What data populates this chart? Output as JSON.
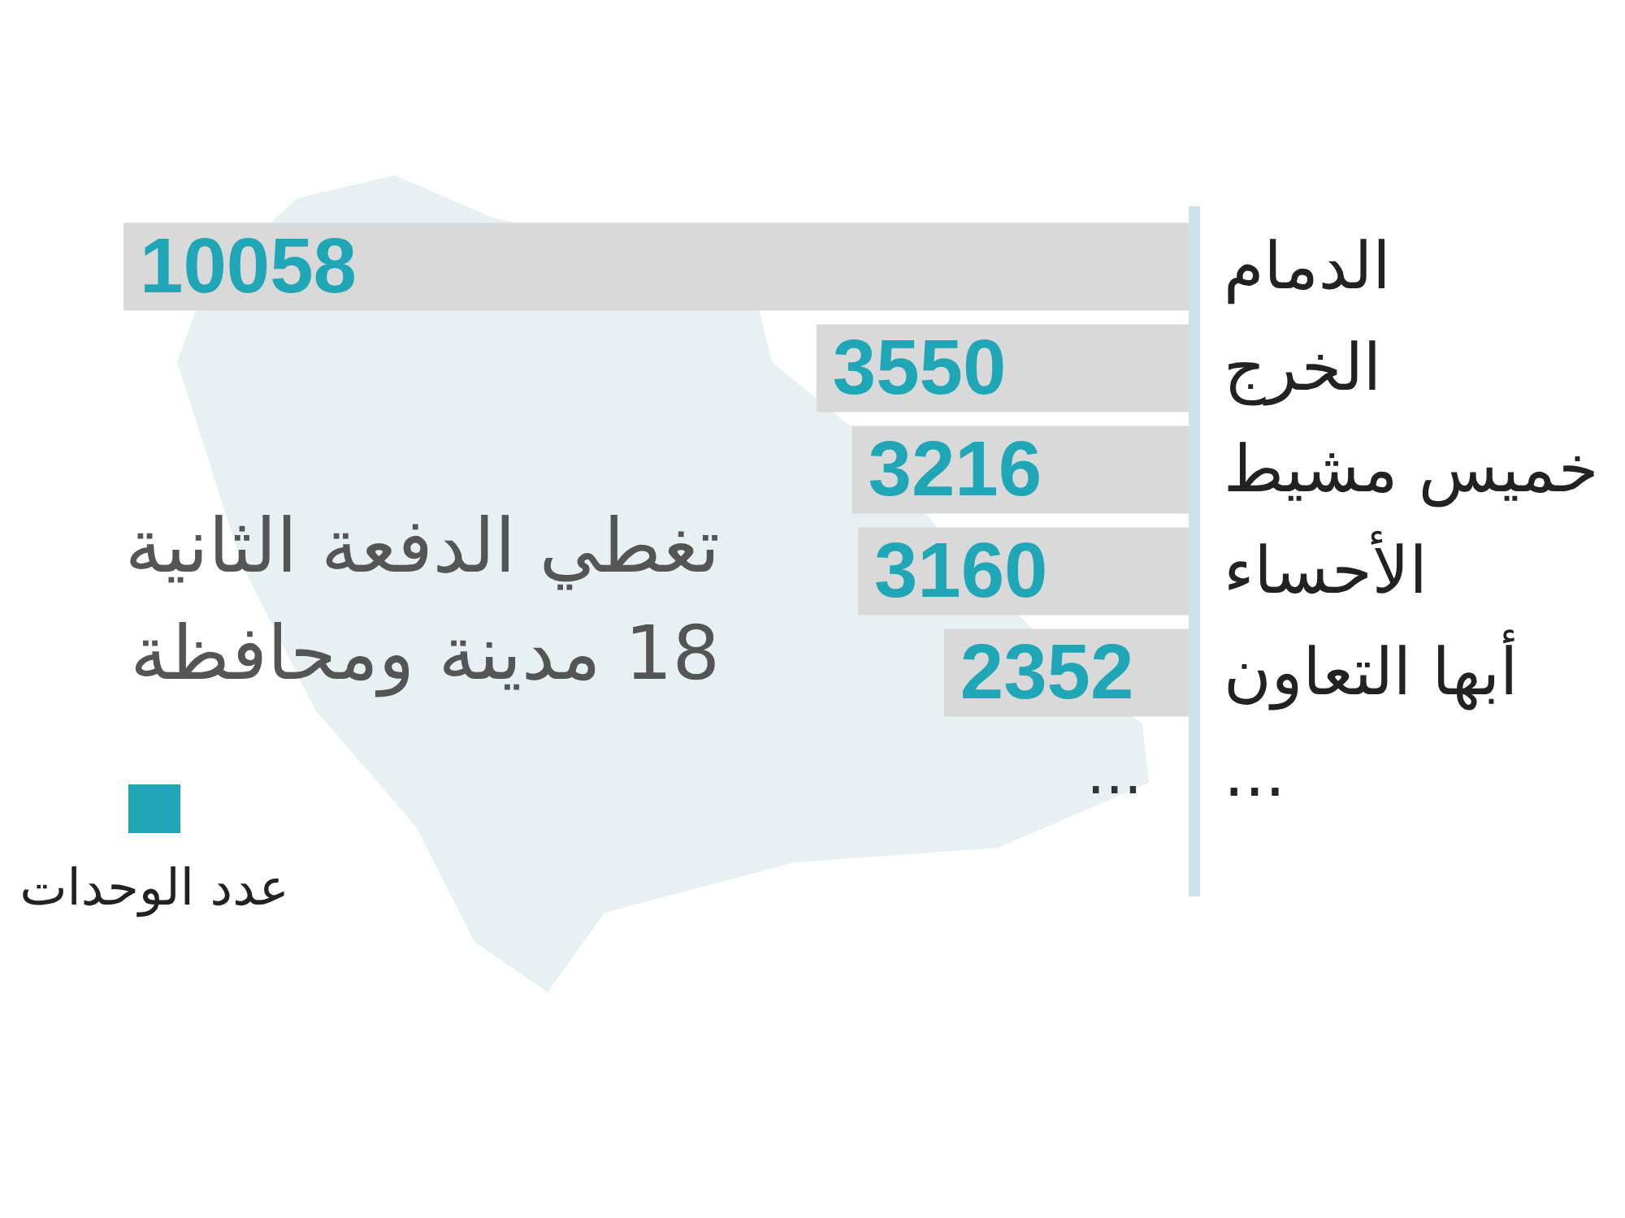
{
  "chart_data": {
    "type": "bar",
    "orientation": "horizontal",
    "title": "تغطي الدفعة الثانية\n18 مدينة ومحافظة",
    "categories": [
      "الدمام",
      "الخرج",
      "خميس مشيط",
      "الأحساء",
      "أبها التعاون",
      "..."
    ],
    "series": [
      {
        "name": "عدد الوحدات",
        "color": "#1fa6b7",
        "colors": [
          "#d9d9d9",
          "#d9d9d9",
          "#d9d9d9",
          "#d9d9d9",
          "#d9d9d9",
          "#d9d9d9"
        ],
        "values": [
          10058,
          3550,
          3216,
          3160,
          2352,
          null
        ],
        "value_labels": [
          "10058",
          "3550",
          "3216",
          "3160",
          "2352",
          "..."
        ]
      }
    ],
    "tick_labels": "y",
    "legend": "bottom left"
  }
}
